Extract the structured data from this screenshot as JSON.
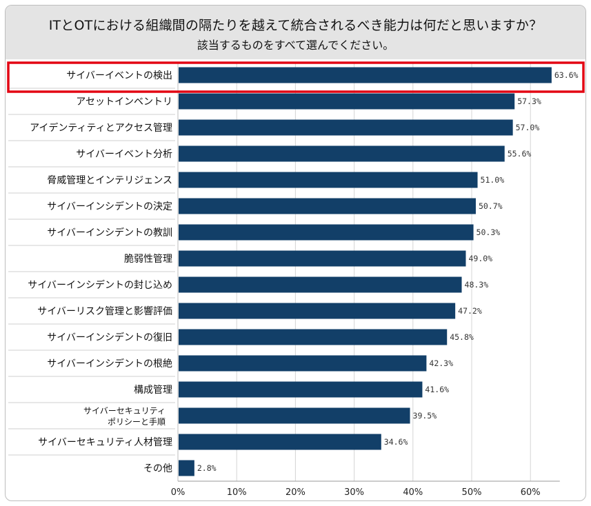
{
  "header": {
    "title": "ITとOTにおける組織間の隔たりを越えて統合されるべき能力は何だと思いますか？",
    "subtitle": "該当するものをすべて選んでください。"
  },
  "chart_data": {
    "type": "bar",
    "orientation": "horizontal",
    "title": "ITとOTにおける組織間の隔たりを越えて統合されるべき能力は何だと思いますか？",
    "subtitle": "該当するものをすべて選んでください。",
    "categories": [
      "サイバーイベントの検出",
      "アセットインベントリ",
      "アイデンティティとアクセス管理",
      "サイバーイベント分析",
      "脅威管理とインテリジェンス",
      "サイバーインシデントの決定",
      "サイバーインシデントの教訓",
      "脆弱性管理",
      "サイバーインシデントの封じ込め",
      "サイバーリスク管理と影響評価",
      "サイバーインシデントの復旧",
      "サイバーインシデントの根絶",
      "構成管理",
      "サイバーセキュリティ\nポリシーと手順",
      "サイバーセキュリティ人材管理",
      "その他"
    ],
    "values": [
      63.6,
      57.3,
      57.0,
      55.6,
      51.0,
      50.7,
      50.3,
      49.0,
      48.3,
      47.2,
      45.8,
      42.3,
      41.6,
      39.5,
      34.6,
      2.8
    ],
    "value_labels": [
      "63.6%",
      "57.3%",
      "57.0%",
      "55.6%",
      "51.0%",
      "50.7%",
      "50.3%",
      "49.0%",
      "48.3%",
      "47.2%",
      "45.8%",
      "42.3%",
      "41.6%",
      "39.5%",
      "34.6%",
      "2.8%"
    ],
    "xlim": [
      0,
      65
    ],
    "xticks": [
      0,
      10,
      20,
      30,
      40,
      50,
      60
    ],
    "xtick_labels": [
      "0%",
      "10%",
      "20%",
      "30%",
      "40%",
      "50%",
      "60%"
    ],
    "grid": "vertical",
    "highlighted_category_index": 0,
    "colors": {
      "bar": "#123f68",
      "highlight_border": "#e30613",
      "header_bg": "#e4e4e4",
      "grid": "#d4d4d4"
    }
  }
}
